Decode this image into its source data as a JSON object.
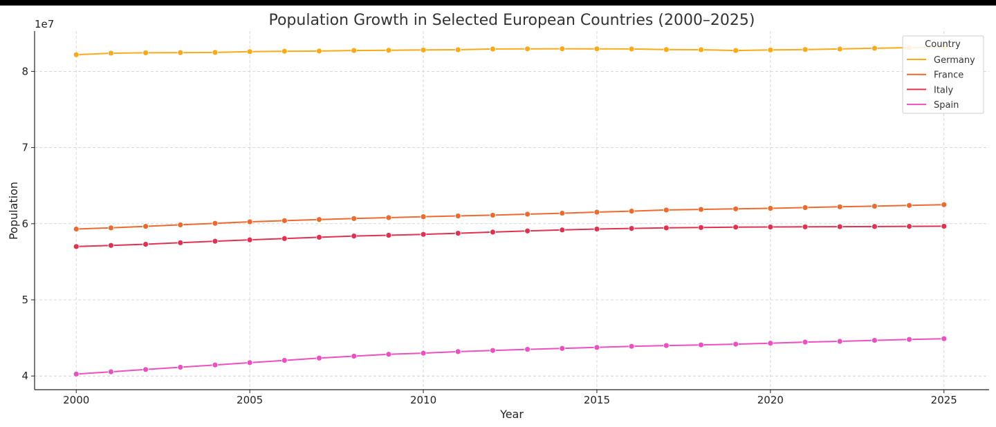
{
  "chart_data": {
    "type": "line",
    "title": "Population Growth in Selected European Countries (2000–2025)",
    "xlabel": "Year",
    "ylabel": "Population",
    "y_offset_label": "1e7",
    "xlim": [
      1998.8,
      2026.3
    ],
    "ylim": [
      38200000,
      85300000
    ],
    "x_ticks": [
      2000,
      2005,
      2010,
      2015,
      2020,
      2025
    ],
    "y_ticks": [
      40000000,
      50000000,
      60000000,
      70000000,
      80000000
    ],
    "y_tick_labels": [
      "4",
      "5",
      "6",
      "7",
      "8"
    ],
    "grid": true,
    "legend": {
      "title": "Country",
      "placement": "top-right"
    },
    "x": [
      2000,
      2001,
      2002,
      2003,
      2004,
      2005,
      2006,
      2007,
      2008,
      2009,
      2010,
      2011,
      2012,
      2013,
      2014,
      2015,
      2016,
      2017,
      2018,
      2019,
      2020,
      2021,
      2022,
      2023,
      2024,
      2025
    ],
    "series": [
      {
        "name": "Germany",
        "color": "#FBAA16",
        "values": [
          82200000,
          82400000,
          82450000,
          82470000,
          82500000,
          82600000,
          82650000,
          82680000,
          82750000,
          82780000,
          82820000,
          82850000,
          82950000,
          82970000,
          82980000,
          82970000,
          82950000,
          82870000,
          82850000,
          82750000,
          82820000,
          82880000,
          82950000,
          83050000,
          83120000,
          83180000
        ]
      },
      {
        "name": "France",
        "color": "#ED6A2C",
        "values": [
          59300000,
          59450000,
          59650000,
          59850000,
          60050000,
          60250000,
          60400000,
          60550000,
          60680000,
          60800000,
          60920000,
          61020000,
          61120000,
          61250000,
          61380000,
          61520000,
          61650000,
          61800000,
          61880000,
          61950000,
          62020000,
          62120000,
          62220000,
          62300000,
          62400000,
          62500000
        ]
      },
      {
        "name": "Italy",
        "color": "#E2314F",
        "values": [
          57000000,
          57150000,
          57300000,
          57500000,
          57700000,
          57880000,
          58050000,
          58220000,
          58380000,
          58480000,
          58600000,
          58750000,
          58900000,
          59050000,
          59180000,
          59300000,
          59380000,
          59450000,
          59500000,
          59550000,
          59570000,
          59590000,
          59610000,
          59630000,
          59650000,
          59670000
        ]
      },
      {
        "name": "Spain",
        "color": "#EE4FC0",
        "values": [
          40250000,
          40550000,
          40850000,
          41150000,
          41450000,
          41750000,
          42050000,
          42350000,
          42600000,
          42850000,
          43000000,
          43200000,
          43350000,
          43500000,
          43620000,
          43750000,
          43900000,
          44000000,
          44080000,
          44180000,
          44300000,
          44450000,
          44550000,
          44680000,
          44800000,
          44900000
        ]
      }
    ]
  }
}
